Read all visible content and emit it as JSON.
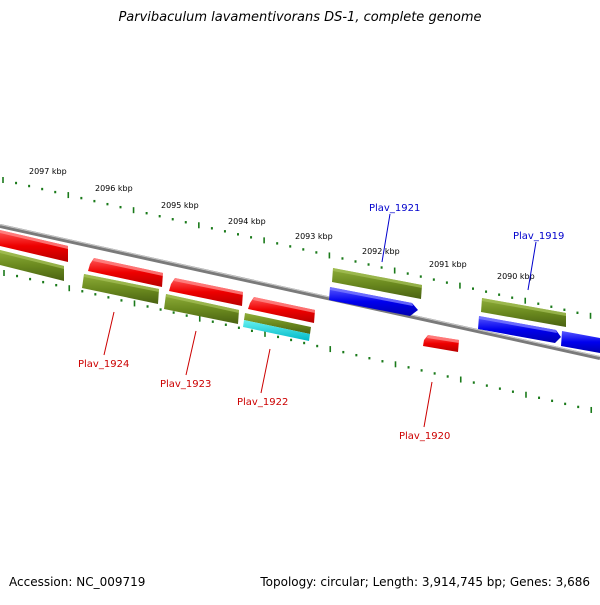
{
  "title": "Parvibaculum lavamentivorans DS-1, complete genome",
  "footer": {
    "accession": "Accession: NC_009719",
    "topology": "Topology: circular; Length: 3,914,745 bp; Genes: 3,686"
  },
  "colors": {
    "backbone": "#7a7a7a",
    "ticks": "#1a7a1a",
    "red_gene": "#ee0000",
    "green_gene": "#6b8a1f",
    "blue_gene": "#0000ee",
    "cyan_gene": "#00cccc",
    "label_red": "#cc0000",
    "label_blue": "#0000cc"
  },
  "kbp_labels": [
    "2097 kbp",
    "2096 kbp",
    "2095 kbp",
    "2094 kbp",
    "2093 kbp",
    "2092 kbp",
    "2091 kbp",
    "2090 kbp"
  ],
  "gene_labels": {
    "plav_1924": "Plav_1924",
    "plav_1923": "Plav_1923",
    "plav_1922": "Plav_1922",
    "plav_1921": "Plav_1921",
    "plav_1920": "Plav_1920",
    "plav_1919": "Plav_1919"
  }
}
